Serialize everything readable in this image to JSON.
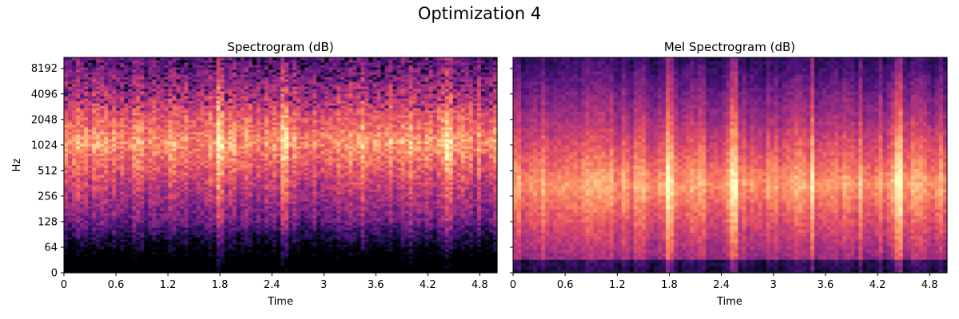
{
  "figure": {
    "suptitle": "Optimization 4"
  },
  "colormap": [
    "#000004",
    "#1c1044",
    "#4f127b",
    "#812581",
    "#b5367a",
    "#e55064",
    "#fb8761",
    "#fec287",
    "#fcfdbf"
  ],
  "chart_data": [
    {
      "type": "heatmap",
      "title": "Spectrogram (dB)",
      "xlabel": "Time",
      "ylabel": "Hz",
      "x_ticks": [
        "0",
        "0.6",
        "1.2",
        "1.8",
        "2.4",
        "3",
        "3.6",
        "4.2",
        "4.8"
      ],
      "x_tick_values": [
        0,
        0.6,
        1.2,
        1.8,
        2.4,
        3.0,
        3.6,
        4.2,
        4.8
      ],
      "xlim": [
        0,
        5.0
      ],
      "y_scale": "log",
      "y_ticks": [
        "0",
        "64",
        "128",
        "256",
        "512",
        "1024",
        "2048",
        "4096",
        "8192"
      ],
      "y_tick_values": [
        0,
        64,
        128,
        256,
        512,
        1024,
        2048,
        4096,
        8192
      ],
      "grid": false,
      "energy_peak_hz": 1100,
      "strong_frames_s": [
        1.8,
        2.55,
        3.45,
        4.0,
        4.45
      ]
    },
    {
      "type": "heatmap",
      "title": "Mel Spectrogram (dB)",
      "xlabel": "Time",
      "ylabel": "",
      "x_ticks": [
        "0",
        "0.6",
        "1.2",
        "1.8",
        "2.4",
        "3",
        "3.6",
        "4.2",
        "4.8"
      ],
      "x_tick_values": [
        0,
        0.6,
        1.2,
        1.8,
        2.4,
        3.0,
        3.6,
        4.2,
        4.8
      ],
      "xlim": [
        0,
        5.0
      ],
      "y_scale": "log",
      "y_tick_labels_visible": false,
      "y_tick_values": [
        0,
        64,
        128,
        256,
        512,
        1024,
        2048,
        4096,
        8192
      ],
      "grid": false,
      "energy_peak_hz": 350,
      "strong_frames_s": [
        1.8,
        2.55,
        3.45,
        4.0,
        4.45
      ]
    }
  ]
}
